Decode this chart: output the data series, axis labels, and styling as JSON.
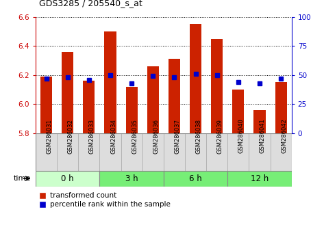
{
  "title": "GDS3285 / 205540_s_at",
  "samples": [
    "GSM286031",
    "GSM286032",
    "GSM286033",
    "GSM286034",
    "GSM286035",
    "GSM286036",
    "GSM286037",
    "GSM286038",
    "GSM286039",
    "GSM286040",
    "GSM286041",
    "GSM286042"
  ],
  "bar_values": [
    6.19,
    6.36,
    6.16,
    6.5,
    6.12,
    6.26,
    6.31,
    6.55,
    6.45,
    6.1,
    5.96,
    6.15
  ],
  "percentile_values": [
    47,
    48,
    46,
    50,
    43,
    49,
    48,
    51,
    50,
    44,
    43,
    47
  ],
  "bar_color": "#cc2200",
  "marker_color": "#0000cc",
  "ylim_left": [
    5.8,
    6.6
  ],
  "ylim_right": [
    0,
    100
  ],
  "yticks_left": [
    5.8,
    6.0,
    6.2,
    6.4,
    6.6
  ],
  "yticks_right": [
    0,
    25,
    50,
    75,
    100
  ],
  "groups": [
    {
      "label": "0 h",
      "start": 0,
      "end": 3
    },
    {
      "label": "3 h",
      "start": 3,
      "end": 6
    },
    {
      "label": "6 h",
      "start": 6,
      "end": 9
    },
    {
      "label": "12 h",
      "start": 9,
      "end": 12
    }
  ],
  "group_colors_light": "#ccffcc",
  "group_colors_medium": "#77ee77",
  "time_label": "time",
  "legend_bar_label": "transformed count",
  "legend_marker_label": "percentile rank within the sample",
  "bar_width": 0.55,
  "base_value": 5.8,
  "bg_color": "#ffffff",
  "grid_color": "#000000",
  "label_bg": "#dddddd",
  "spine_color_left": "#cc0000",
  "spine_color_right": "#0000cc"
}
